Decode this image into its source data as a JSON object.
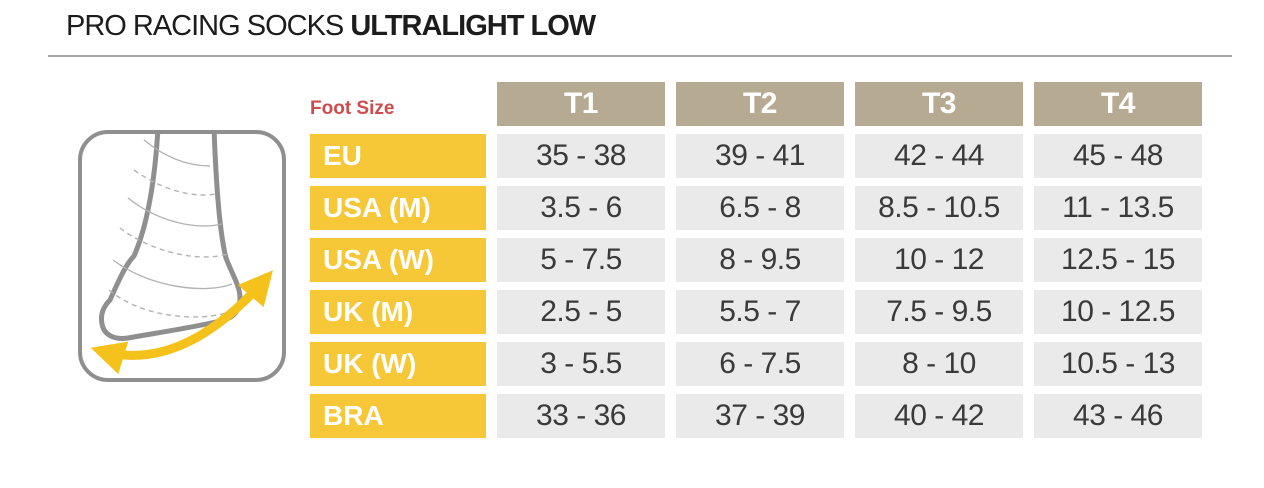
{
  "header": {
    "title_regular": "PRO RACING SOCKS ",
    "title_bold": "ULTRALIGHT LOW"
  },
  "illustration": {
    "icon": "foot-length-measure-icon",
    "description_colors": {
      "outline": "#8f8f8f",
      "arrow": "#f5c21b"
    }
  },
  "colors": {
    "brand_yellow": "#f6c837",
    "header_tan": "#b7aa92",
    "cell_gray": "#eaeaea",
    "accent_red": "#d04b4b",
    "text_dark": "#3a3a3a"
  },
  "chart_data": {
    "type": "table",
    "title": "PRO RACING SOCKS ULTRALIGHT LOW",
    "corner_label": "Foot Size",
    "columns": [
      "T1",
      "T2",
      "T3",
      "T4"
    ],
    "rows": [
      {
        "label": "EU",
        "values": [
          "35 - 38",
          "39 - 41",
          "42 - 44",
          "45 - 48"
        ]
      },
      {
        "label": "USA (M)",
        "values": [
          "3.5 - 6",
          "6.5 - 8",
          "8.5 - 10.5",
          "11 - 13.5"
        ]
      },
      {
        "label": "USA (W)",
        "values": [
          "5 - 7.5",
          "8 - 9.5",
          "10 - 12",
          "12.5 - 15"
        ]
      },
      {
        "label": "UK (M)",
        "values": [
          "2.5 - 5",
          "5.5 - 7",
          "7.5 - 9.5",
          "10 - 12.5"
        ]
      },
      {
        "label": "UK (W)",
        "values": [
          "3 - 5.5",
          "6 - 7.5",
          "8 - 10",
          "10.5 - 13"
        ]
      },
      {
        "label": "BRA",
        "values": [
          "33 - 36",
          "37 - 39",
          "40 - 42",
          "43 - 46"
        ]
      }
    ]
  }
}
